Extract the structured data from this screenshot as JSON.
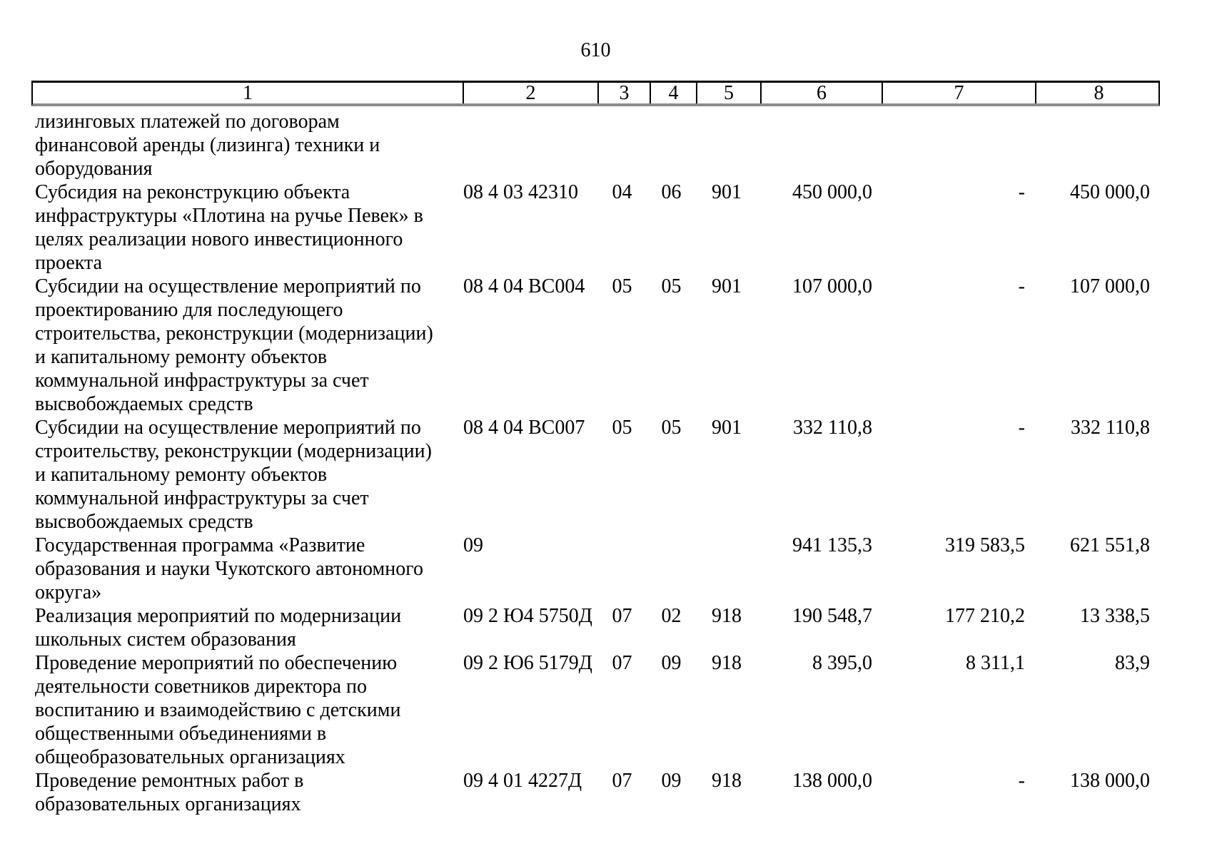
{
  "page": {
    "number": "610"
  },
  "table": {
    "header": [
      "1",
      "2",
      "3",
      "4",
      "5",
      "6",
      "7",
      "8"
    ],
    "rows": [
      {
        "c1": "лизинговых платежей по договорам\nфинансовой аренды (лизинга) техники и\nоборудования",
        "c2": "",
        "c3": "",
        "c4": "",
        "c5": "",
        "c6": "",
        "c7": "",
        "c8": ""
      },
      {
        "c1": "Субсидия на реконструкцию объекта\nинфраструктуры «Плотина на ручье Певек» в\nцелях реализации нового инвестиционного\nпроекта",
        "c2": "08 4 03 42310",
        "c3": "04",
        "c4": "06",
        "c5": "901",
        "c6": "450 000,0",
        "c7": "-",
        "c8": "450 000,0"
      },
      {
        "c1": "Субсидии на осуществление мероприятий по\nпроектированию для последующего\nстроительства, реконструкции (модернизации)\nи капитальному ремонту объектов\nкоммунальной инфраструктуры за счет\nвысвобождаемых средств",
        "c2": "08 4 04 ВС004",
        "c3": "05",
        "c4": "05",
        "c5": "901",
        "c6": "107 000,0",
        "c7": "-",
        "c8": "107 000,0"
      },
      {
        "c1": "Субсидии на осуществление мероприятий по\nстроительству, реконструкции (модернизации)\nи капитальному ремонту объектов\nкоммунальной инфраструктуры за счет\nвысвобождаемых средств",
        "c2": "08 4 04 ВС007",
        "c3": "05",
        "c4": "05",
        "c5": "901",
        "c6": "332 110,8",
        "c7": "-",
        "c8": "332 110,8"
      },
      {
        "c1": "Государственная программа «Развитие\nобразования и науки Чукотского автономного\nокруга»",
        "c2": "09",
        "c3": "",
        "c4": "",
        "c5": "",
        "c6": "941 135,3",
        "c7": "319 583,5",
        "c8": "621 551,8"
      },
      {
        "c1": "Реализация мероприятий по модернизации\nшкольных систем образования",
        "c2": "09 2 Ю4 5750Д",
        "c3": "07",
        "c4": "02",
        "c5": "918",
        "c6": "190 548,7",
        "c7": "177 210,2",
        "c8": "13 338,5"
      },
      {
        "c1": "Проведение мероприятий по обеспечению\nдеятельности советников директора по\nвоспитанию и взаимодействию с детскими\nобщественными объединениями в\nобщеобразовательных организациях",
        "c2": "09 2 Ю6 5179Д",
        "c3": "07",
        "c4": "09",
        "c5": "918",
        "c6": "8 395,0",
        "c7": "8 311,1",
        "c8": "83,9"
      },
      {
        "c1": "Проведение ремонтных работ в\nобразовательных организациях",
        "c2": "09 4 01 4227Д",
        "c3": "07",
        "c4": "09",
        "c5": "918",
        "c6": "138 000,0",
        "c7": "-",
        "c8": "138 000,0"
      }
    ]
  }
}
